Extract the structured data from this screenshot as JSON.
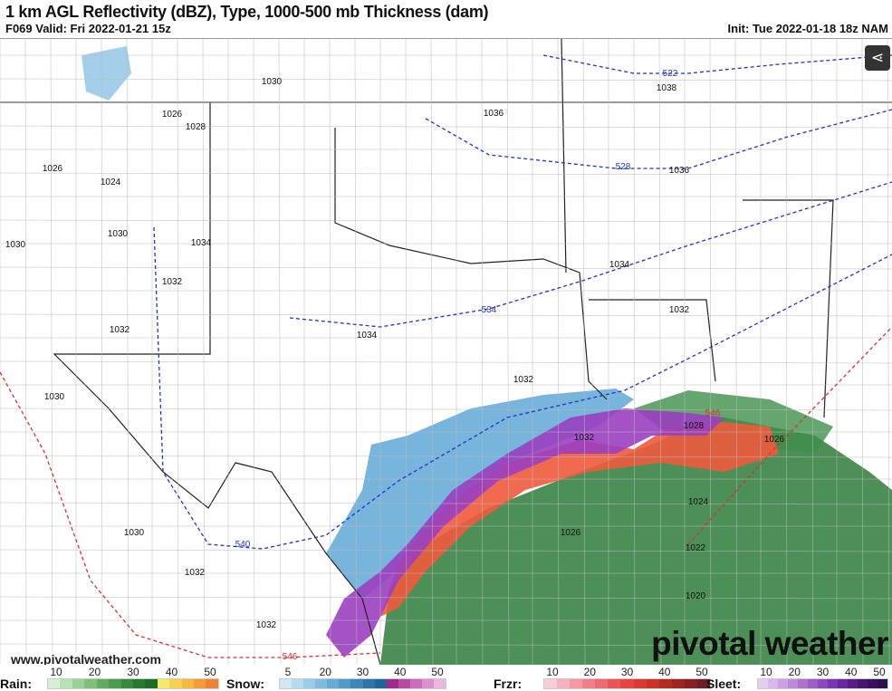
{
  "header": {
    "title": "1 km AGL Reflectivity (dBZ), Type, 1000-500 mb Thickness (dam)",
    "valid": "F069 Valid: Fri 2022-01-21 15z",
    "init": "Init: Tue 2022-01-18 18z NAM"
  },
  "map": {
    "share_icon": "share-icon",
    "pressure_labels": [
      "1030",
      "1026",
      "1028",
      "1026",
      "1024",
      "1030",
      "1030",
      "1032",
      "1032",
      "1034",
      "1034",
      "1036",
      "1038",
      "1036",
      "1034",
      "1032",
      "1032",
      "1030",
      "1028",
      "1026",
      "1024",
      "1026",
      "1022",
      "1020",
      "1030",
      "1032",
      "1032",
      "1032"
    ],
    "thickness_labels": [
      "522",
      "528",
      "534",
      "540",
      "546",
      "546"
    ],
    "colors": {
      "thickness_blue": "#2233cc",
      "thickness_red": "#e03030",
      "rain": "#2e7d3a",
      "snow": "#5fa8d6",
      "frzr": "#ef5a3c",
      "sleet": "#9a3fc0"
    }
  },
  "watermark": {
    "url": "www.pivotalweather.com",
    "logo": "pivotal weather"
  },
  "legend": [
    {
      "label": "Rain:",
      "ticks": [
        "10",
        "20",
        "30",
        "40",
        "50"
      ],
      "colors": [
        "#d6f0d6",
        "#b8e3b5",
        "#9bd196",
        "#7fbf7a",
        "#64ab62",
        "#4b9a4d",
        "#368a3d",
        "#267a30",
        "#1b6c26",
        "#f5e96b",
        "#f6d24e",
        "#f5b840",
        "#f39c38",
        "#f08232"
      ]
    },
    {
      "label": "Snow:",
      "ticks": [
        "5",
        "20",
        "30",
        "40",
        "50"
      ],
      "colors": [
        "#cfe8f7",
        "#b5dbf1",
        "#99cbea",
        "#7fbbe2",
        "#66abd8",
        "#4f99cb",
        "#3b87bc",
        "#2b75ab",
        "#1f6598",
        "#a02a8c",
        "#b84aa3",
        "#cd6cba",
        "#dd90cd",
        "#ecb6e0"
      ]
    },
    {
      "label": "Frzr:",
      "ticks": [
        "10",
        "20",
        "30",
        "40",
        "50"
      ],
      "colors": [
        "#f7cdd8",
        "#f6b3bf",
        "#f499a2",
        "#f2808a",
        "#ef6a70",
        "#ec5558",
        "#e84442",
        "#dc3a30",
        "#c93226",
        "#b52a20",
        "#9e2520",
        "#862022",
        "#6e1c25"
      ]
    },
    {
      "label": "Sleet:",
      "ticks": [
        "10",
        "20",
        "30",
        "40",
        "50"
      ],
      "colors": [
        "#e6cdf2",
        "#d9b6ec",
        "#cba0e4",
        "#bd89dc",
        "#ae72d3",
        "#9f5cc9",
        "#8e47bd",
        "#7c35ae",
        "#6a269c",
        "#581b88",
        "#481473",
        "#3a105e",
        "#2e0d4b"
      ]
    }
  ]
}
